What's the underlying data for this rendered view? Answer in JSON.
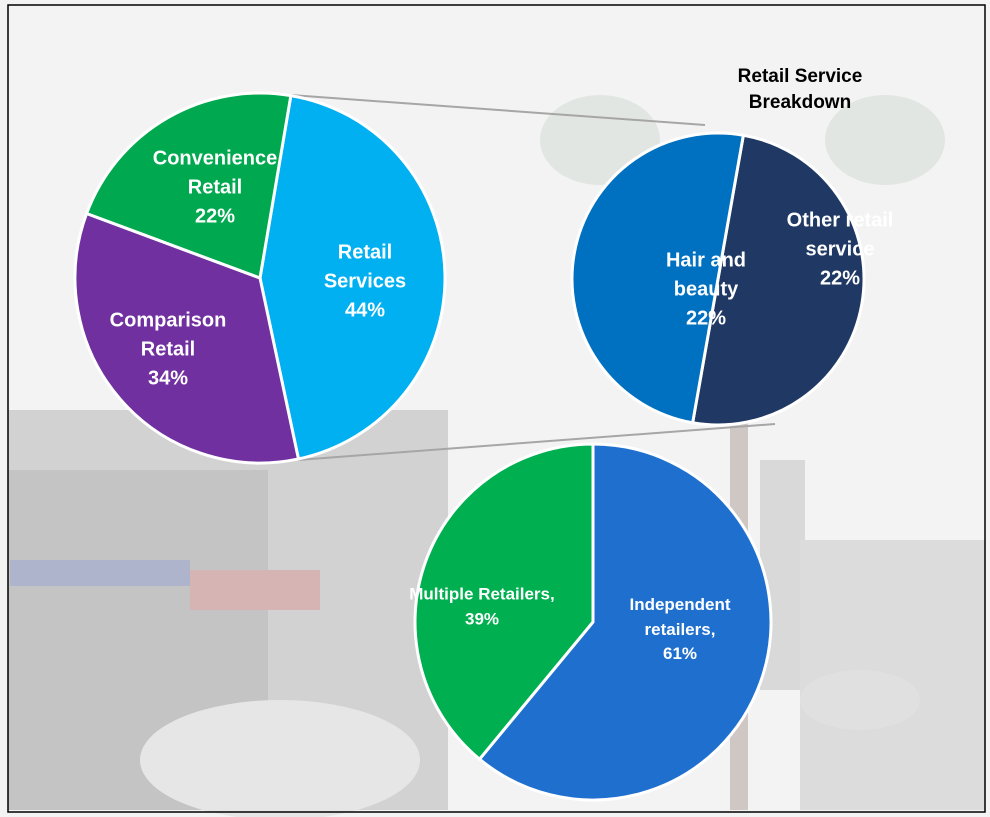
{
  "chart_data": [
    {
      "type": "pie",
      "categories": [
        "Retail Services",
        "Comparison Retail",
        "Convenience Retail"
      ],
      "values": [
        44,
        34,
        22
      ],
      "value_labels": [
        "44%",
        "34%",
        "22%"
      ],
      "colors": [
        "#00b0f0",
        "#7030a0",
        "#00a94f"
      ]
    },
    {
      "type": "pie",
      "title": "Retail Service Breakdown",
      "categories": [
        "Other retail service",
        "Hair and beauty"
      ],
      "values": [
        22,
        22
      ],
      "value_labels": [
        "22%",
        "22%"
      ],
      "colors": [
        "#1f3864",
        "#0070c0"
      ]
    },
    {
      "type": "pie",
      "categories": [
        "Independent retailers,",
        "Multiple Retailers,"
      ],
      "values": [
        61,
        39
      ],
      "value_labels": [
        "61%",
        "39%"
      ],
      "colors": [
        "#1f6fcf",
        "#00b050"
      ]
    }
  ]
}
